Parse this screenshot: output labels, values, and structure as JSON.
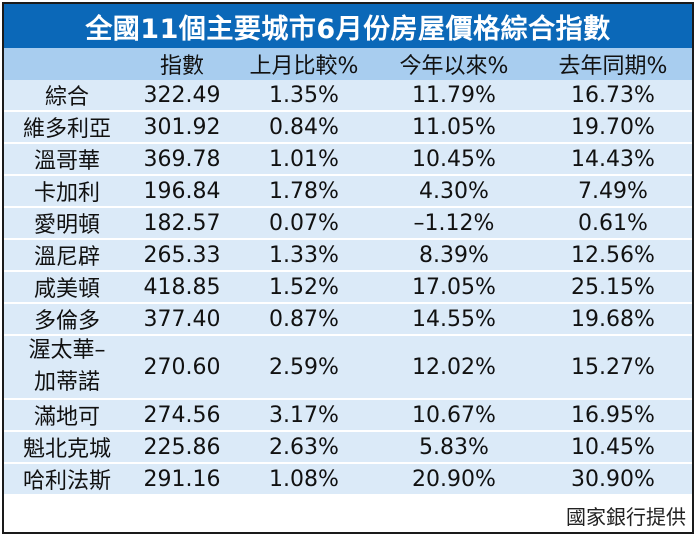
{
  "title": "全國11個主要城市6月份房屋價格綜合指數",
  "columns": [
    "",
    "指數",
    "上月比較%",
    "今年以來%",
    "去年同期%"
  ],
  "rows": [
    {
      "city": "綜合",
      "index": "322.49",
      "mom": "1.35%",
      "ytd": "11.79%",
      "yoy": "16.73%"
    },
    {
      "city": "維多利亞",
      "index": "301.92",
      "mom": "0.84%",
      "ytd": "11.05%",
      "yoy": "19.70%"
    },
    {
      "city": "溫哥華",
      "index": "369.78",
      "mom": "1.01%",
      "ytd": "10.45%",
      "yoy": "14.43%"
    },
    {
      "city": "卡加利",
      "index": "196.84",
      "mom": "1.78%",
      "ytd": "4.30%",
      "yoy": "7.49%"
    },
    {
      "city": "愛明頓",
      "index": "182.57",
      "mom": "0.07%",
      "ytd": "–1.12%",
      "yoy": "0.61%"
    },
    {
      "city": "溫尼辟",
      "index": "265.33",
      "mom": "1.33%",
      "ytd": "8.39%",
      "yoy": "12.56%"
    },
    {
      "city": "咸美頓",
      "index": "418.85",
      "mom": "1.52%",
      "ytd": "17.05%",
      "yoy": "25.15%"
    },
    {
      "city": "多倫多",
      "index": "377.40",
      "mom": "0.87%",
      "ytd": "14.55%",
      "yoy": "19.68%"
    },
    {
      "city_line1": "渥太華–",
      "city_line2": "加蒂諾",
      "index": "270.60",
      "mom": "2.59%",
      "ytd": "12.02%",
      "yoy": "15.27%"
    },
    {
      "city": "滿地可",
      "index": "274.56",
      "mom": "3.17%",
      "ytd": "10.67%",
      "yoy": "16.95%"
    },
    {
      "city": "魁北克城",
      "index": "225.86",
      "mom": "2.63%",
      "ytd": "5.83%",
      "yoy": "10.45%"
    },
    {
      "city": "哈利法斯",
      "index": "291.16",
      "mom": "1.08%",
      "ytd": "20.90%",
      "yoy": "30.90%"
    }
  ],
  "credit": "國家銀行提供",
  "colors": {
    "title_bg": "#0b68b8",
    "header_bg": "#a8cdef",
    "row_shade": "#dbeaf8"
  }
}
